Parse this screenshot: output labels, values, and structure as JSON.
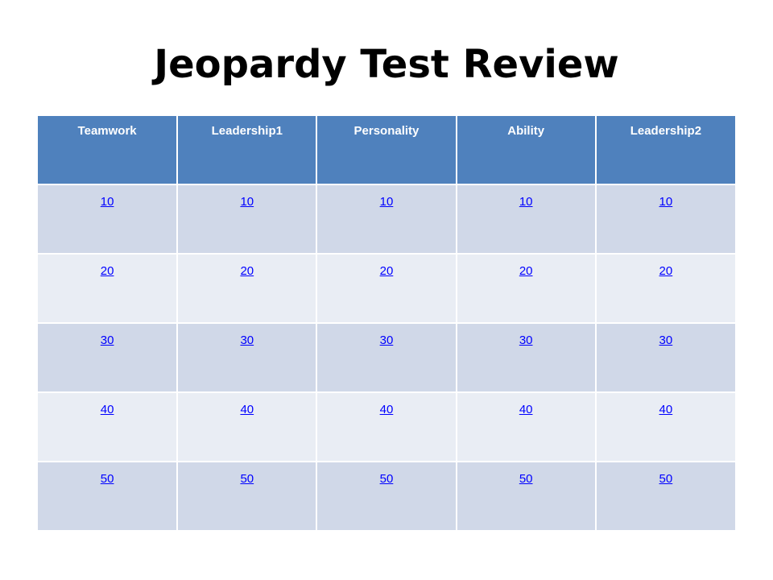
{
  "slide": {
    "title": "Jeopardy Test Review"
  },
  "board": {
    "categories": [
      "Teamwork",
      "Leadership1",
      "Personality",
      "Ability",
      "Leadership2"
    ],
    "rows": [
      [
        "10",
        "10",
        "10",
        "10",
        "10"
      ],
      [
        "20",
        "20",
        "20",
        "20",
        "20"
      ],
      [
        "30",
        "30",
        "30",
        "30",
        "30"
      ],
      [
        "40",
        "40",
        "40",
        "40",
        "40"
      ],
      [
        "50",
        "50",
        "50",
        "50",
        "50"
      ]
    ]
  },
  "colors": {
    "header_bg": "#4f81bd",
    "row_dark": "#d0d8e8",
    "row_light": "#e9edf4",
    "link": "#0000ff"
  }
}
